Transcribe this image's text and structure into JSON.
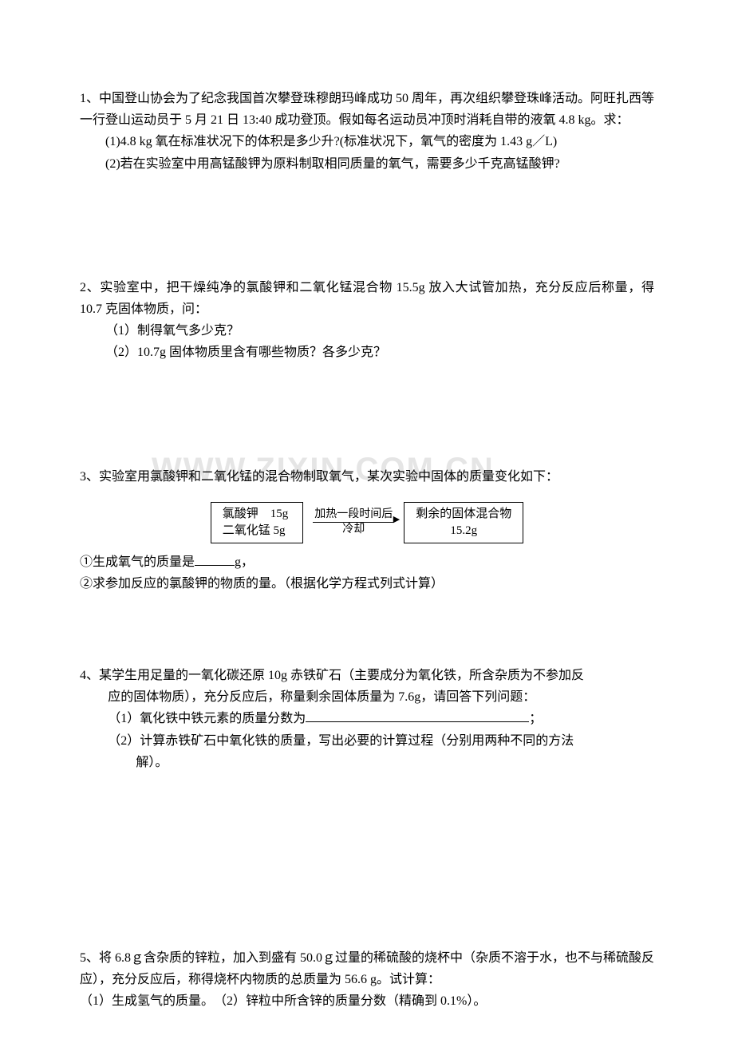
{
  "watermark": "WWW.ZIXIN.COM.CN",
  "problems": {
    "p1": {
      "line1": "1、中国登山协会为了纪念我国首次攀登珠穆朗玛峰成功 50 周年，再次组织攀登珠峰活动。阿旺扎西等一行登山运动员于 5 月 21 日 13:40 成功登顶。假如每名运动员冲顶时消耗自带的液氧 4.8 kg。求：",
      "sub1": "(1)4.8 kg 氧在标准状况下的体积是多少升?(标准状况下，氧气的密度为 1.43 g／L)",
      "sub2": "(2)若在实验室中用高锰酸钾为原料制取相同质量的氧气，需要多少千克高锰酸钾?"
    },
    "p2": {
      "line1": "2、实验室中，把干燥纯净的氯酸钾和二氧化锰混合物 15.5g 放入大试管加热，充分反应后称量，得 10.7 克固体物质，问：",
      "sub1": "（1）制得氧气多少克？",
      "sub2": "（2）10.7g 固体物质里含有哪些物质？各多少克？"
    },
    "p3": {
      "line1": "3、实验室用氯酸钾和二氧化锰的混合物制取氧气，某次实验中固体的质量变化如下：",
      "diagram": {
        "box1_line1": "氯酸钾　15g",
        "box1_line2": "二氧化锰  5g",
        "arrow_top": "加热一段时间后",
        "arrow_bottom": "冷却",
        "box2_line1": "剩余的固体混合物",
        "box2_line2": "15.2g"
      },
      "sub1_prefix": "①生成氧气的质量是",
      "sub1_suffix": "g，",
      "sub2": "②求参加反应的氯酸钾的物质的量。（根据化学方程式列式计算）"
    },
    "p4": {
      "line1": "4、某学生用足量的一氧化碳还原 10g 赤铁矿石（主要成分为氧化铁，所含杂质为不参加反",
      "line1b": "应的固体物质），充分反应后，称量剩余固体质量为 7.6g，请回答下列问题：",
      "sub1_prefix": "（1）氧化铁中铁元素的质量分数为",
      "sub1_suffix": "；",
      "sub2a": "（2）计算赤铁矿石中氧化铁的质量，写出必要的计算过程（分别用两种不同的方法",
      "sub2b": "解）。"
    },
    "p5": {
      "line1": "5、将 6.8ｇ含杂质的锌粒，加入到盛有 50.0ｇ过量的稀硫酸的烧杯中（杂质不溶于水，也不与稀硫酸反应），充分反应后，称得烧杯内物质的总质量为 56.6 g。试计算：",
      "sub1": "（1）生成氢气的质量。　（2）锌粒中所含锌的质量分数（精确到 0.1%）。"
    }
  }
}
